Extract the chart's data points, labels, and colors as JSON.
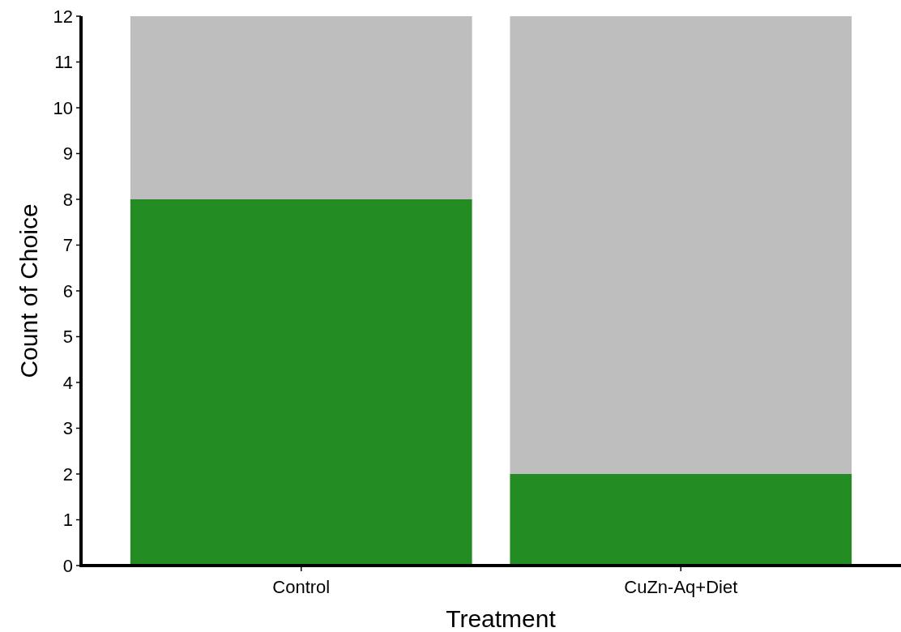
{
  "chart_data": {
    "type": "bar",
    "stacked": true,
    "xlabel": "Treatment",
    "ylabel": "Count of Choice",
    "categories": [
      "Control",
      "CuZn-Aq+Diet"
    ],
    "series": [
      {
        "color": "#228b22",
        "values": [
          8,
          2
        ]
      },
      {
        "color": "#bebebe",
        "values": [
          4,
          10
        ]
      }
    ],
    "ylim": [
      0,
      12
    ],
    "yticks": [
      0,
      1,
      2,
      3,
      4,
      5,
      6,
      7,
      8,
      9,
      10,
      11,
      12
    ],
    "grid": false
  }
}
